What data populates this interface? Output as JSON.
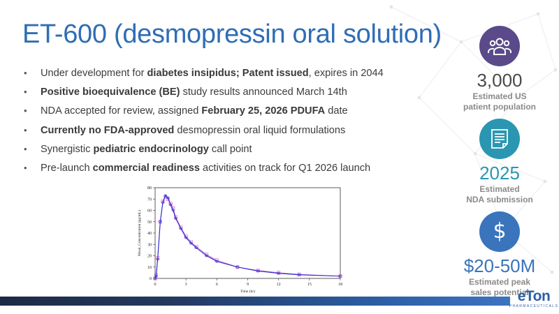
{
  "slide": {
    "title": "ET-600 (desmopressin oral solution)",
    "bullets": [
      {
        "parts": [
          {
            "t": "Under development for ",
            "b": false
          },
          {
            "t": "diabetes insipidus; Patent issued",
            "b": true
          },
          {
            "t": ", expires in 2044",
            "b": false
          }
        ]
      },
      {
        "parts": [
          {
            "t": "Positive bioequivalence (BE)",
            "b": true
          },
          {
            "t": " study results announced March 14th",
            "b": false
          }
        ]
      },
      {
        "parts": [
          {
            "t": "NDA accepted for review, assigned ",
            "b": false
          },
          {
            "t": "February 25, 2026 PDUFA",
            "b": true
          },
          {
            "t": " date",
            "b": false
          }
        ]
      },
      {
        "parts": [
          {
            "t": "Currently no FDA-approved",
            "b": true
          },
          {
            "t": " desmopressin oral liquid formulations",
            "b": false
          }
        ]
      },
      {
        "parts": [
          {
            "t": "Synergistic ",
            "b": false
          },
          {
            "t": "pediatric endocrinology",
            "b": true
          },
          {
            "t": " call point",
            "b": false
          }
        ]
      },
      {
        "parts": [
          {
            "t": "Pre-launch ",
            "b": false
          },
          {
            "t": "commercial readiness",
            "b": true
          },
          {
            "t": " activities on track for Q1 2026 launch",
            "b": false
          }
        ]
      }
    ]
  },
  "stats": [
    {
      "icon": "people-icon",
      "color": "#5a4a8a",
      "value_color": "#4a4a4a",
      "value": "3,000",
      "caption_lines": [
        "Estimated US",
        "patient population"
      ]
    },
    {
      "icon": "document-icon",
      "color": "#2a96b2",
      "value_color": "#2a96b2",
      "value": "2025",
      "caption_lines": [
        "Estimated",
        "NDA submission"
      ]
    },
    {
      "icon": "dollar-icon",
      "color": "#3a74bd",
      "value_color": "#3a74bd",
      "value": "$20-50M",
      "caption_lines": [
        "Estimated peak",
        "sales potential"
      ]
    }
  ],
  "logo": {
    "mark": "eTon",
    "sub": "PHARMACEUTICALS"
  },
  "chart_data": {
    "type": "line",
    "xlabel": "Time (hr)",
    "ylabel": "Mean_Concentration (pg/mL)",
    "xlim": [
      0,
      18
    ],
    "ylim": [
      0,
      80
    ],
    "xticks": [
      0,
      3,
      6,
      9,
      12,
      15,
      18
    ],
    "yticks": [
      0,
      10,
      20,
      30,
      40,
      50,
      60,
      70,
      80
    ],
    "series": [
      {
        "marker": "square",
        "color": "#d070d0",
        "x": [
          0,
          0.1,
          0.25,
          0.5,
          0.75,
          1.0,
          1.25,
          1.5,
          1.75,
          2,
          2.5,
          3,
          3.5,
          4,
          5,
          6,
          8,
          10,
          12,
          14,
          18
        ],
        "y": [
          0,
          3,
          18,
          50,
          68,
          72,
          70,
          66,
          62,
          54,
          45,
          37,
          32,
          28,
          21,
          16,
          10,
          7,
          5,
          3.5,
          2
        ]
      },
      {
        "marker": "circle",
        "color": "#2a2ad0",
        "x": [
          0,
          0.1,
          0.25,
          0.5,
          0.75,
          1.0,
          1.25,
          1.5,
          1.75,
          2,
          2.5,
          3,
          3.5,
          4,
          5,
          6,
          8,
          10,
          12,
          14,
          18
        ],
        "y": [
          0,
          2,
          17,
          50,
          67,
          73,
          71,
          65,
          60,
          53,
          44,
          36,
          31,
          27,
          20,
          15,
          10,
          6.5,
          4.5,
          3.2,
          2
        ]
      }
    ]
  }
}
